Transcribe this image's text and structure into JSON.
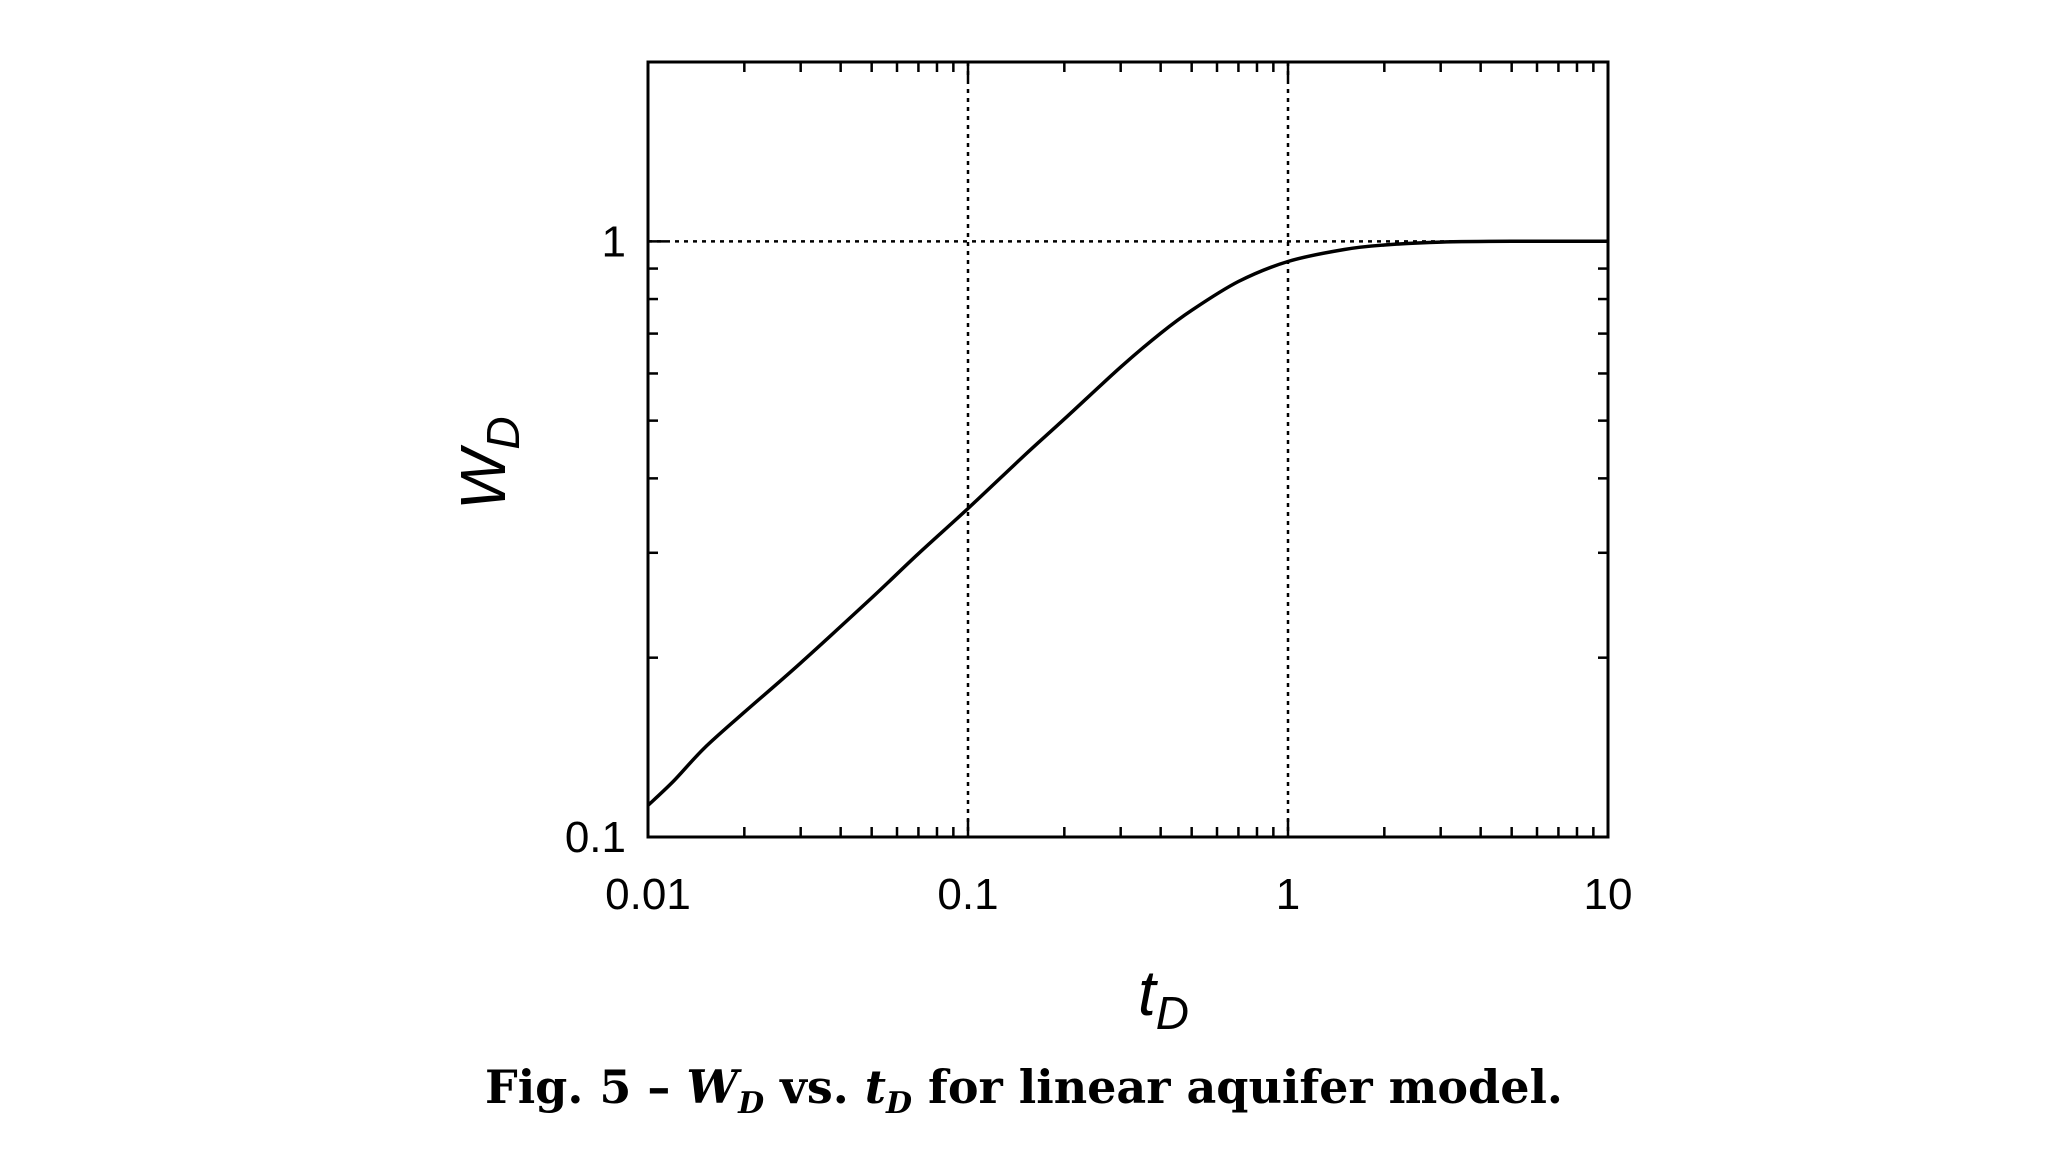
{
  "chart_data": {
    "type": "line",
    "x_scale": "log",
    "y_scale": "log",
    "xlim": [
      0.01,
      10
    ],
    "ylim": [
      0.1,
      2
    ],
    "grid": "dotted at major decades",
    "xlabel": {
      "main": "t",
      "sub": "D"
    },
    "ylabel": {
      "main": "W",
      "sub": "D"
    },
    "x_ticks": [
      {
        "value": 0.01,
        "label": "0.01"
      },
      {
        "value": 0.1,
        "label": "0.1"
      },
      {
        "value": 1,
        "label": "1"
      },
      {
        "value": 10,
        "label": "10"
      }
    ],
    "y_ticks": [
      {
        "value": 0.1,
        "label": "0.1"
      },
      {
        "value": 1,
        "label": "1"
      }
    ],
    "series": [
      {
        "x": [
          0.01,
          0.012,
          0.015,
          0.02,
          0.03,
          0.05,
          0.07,
          0.1,
          0.15,
          0.2,
          0.3,
          0.4,
          0.5,
          0.7,
          1.0,
          1.5,
          2.0,
          3.0,
          5.0,
          10.0
        ],
        "y": [
          0.113,
          0.124,
          0.141,
          0.162,
          0.196,
          0.252,
          0.299,
          0.356,
          0.437,
          0.503,
          0.615,
          0.701,
          0.766,
          0.856,
          0.925,
          0.969,
          0.986,
          0.997,
          1.0,
          1.0
        ]
      }
    ]
  },
  "caption": {
    "prefix": "Fig. 5 –",
    "w_main": "W",
    "w_sub": "D",
    "middle": "vs.",
    "t_main": "t",
    "t_sub": "D",
    "suffix": "for linear aquifer model."
  }
}
